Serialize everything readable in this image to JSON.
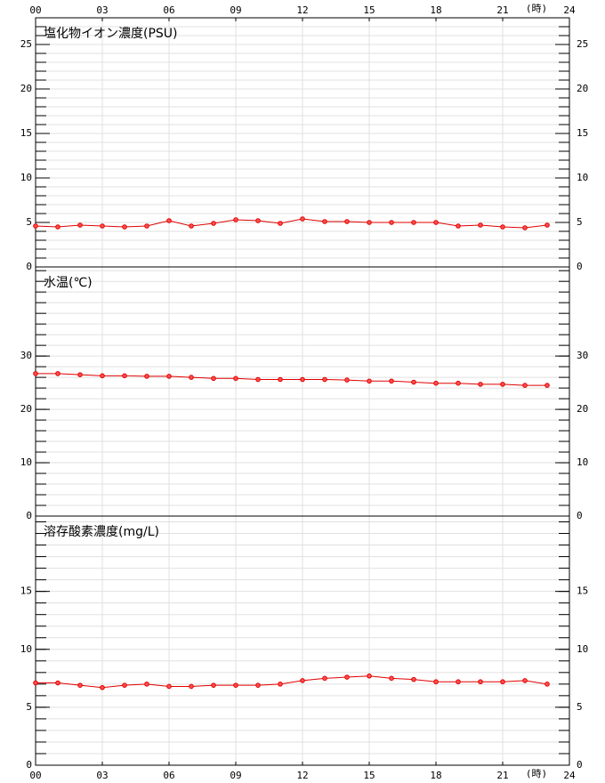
{
  "chart_data": [
    {
      "type": "line",
      "title": "塩化物イオン濃度(PSU)",
      "x_label": "(時)",
      "x": [
        0,
        1,
        2,
        3,
        4,
        5,
        6,
        7,
        8,
        9,
        10,
        11,
        12,
        13,
        14,
        15,
        16,
        17,
        18,
        19,
        20,
        21,
        22,
        23
      ],
      "xlim": [
        0,
        24
      ],
      "xticks": [
        {
          "value": 0,
          "label": "00"
        },
        {
          "value": 3,
          "label": "03"
        },
        {
          "value": 6,
          "label": "06"
        },
        {
          "value": 9,
          "label": "09"
        },
        12,
        15,
        18,
        21,
        24
      ],
      "ylim": [
        0,
        28
      ],
      "yticks": [
        0,
        5,
        10,
        15,
        20,
        25
      ],
      "minor_step": 1,
      "grid": true,
      "series": [
        {
          "color": "#e00000",
          "values": [
            4.6,
            4.5,
            4.7,
            4.6,
            4.5,
            4.6,
            5.2,
            4.6,
            4.9,
            5.3,
            5.2,
            4.9,
            5.4,
            5.1,
            5.1,
            5.0,
            5.0,
            5.0,
            5.0,
            4.6,
            4.7,
            4.5,
            4.4,
            4.7
          ]
        }
      ]
    },
    {
      "type": "line",
      "title": "水温(℃)",
      "x": [
        0,
        1,
        2,
        3,
        4,
        5,
        6,
        7,
        8,
        9,
        10,
        11,
        12,
        13,
        14,
        15,
        16,
        17,
        18,
        19,
        20,
        21,
        22,
        23
      ],
      "xlim": [
        0,
        24
      ],
      "ylim": [
        0,
        46.7
      ],
      "yticks": [
        0,
        10,
        20,
        30
      ],
      "minor_step": 2,
      "grid": true,
      "series": [
        {
          "color": "#e00000",
          "values": [
            26.7,
            26.7,
            26.5,
            26.3,
            26.3,
            26.2,
            26.2,
            26.0,
            25.8,
            25.8,
            25.6,
            25.6,
            25.6,
            25.6,
            25.5,
            25.3,
            25.3,
            25.1,
            24.9,
            24.9,
            24.7,
            24.7,
            24.5,
            24.5
          ]
        }
      ]
    },
    {
      "type": "line",
      "title": "溶存酸素濃度(mg/L)",
      "x_label": "(時)",
      "x": [
        0,
        1,
        2,
        3,
        4,
        5,
        6,
        7,
        8,
        9,
        10,
        11,
        12,
        13,
        14,
        15,
        16,
        17,
        18,
        19,
        20,
        21,
        22,
        23
      ],
      "xlim": [
        0,
        24
      ],
      "xticks": [
        {
          "value": 0,
          "label": "00"
        },
        {
          "value": 3,
          "label": "03"
        },
        {
          "value": 6,
          "label": "06"
        },
        {
          "value": 9,
          "label": "09"
        },
        12,
        15,
        18,
        21,
        24
      ],
      "ylim": [
        0,
        21.5
      ],
      "yticks": [
        0,
        5,
        10,
        15
      ],
      "minor_step": 1,
      "grid": true,
      "series": [
        {
          "color": "#e00000",
          "values": [
            7.1,
            7.1,
            6.9,
            6.7,
            6.9,
            7.0,
            6.8,
            6.8,
            6.9,
            6.9,
            6.9,
            7.0,
            7.3,
            7.5,
            7.6,
            7.7,
            7.5,
            7.4,
            7.2,
            7.2,
            7.2,
            7.2,
            7.3,
            7.0
          ]
        }
      ]
    }
  ]
}
